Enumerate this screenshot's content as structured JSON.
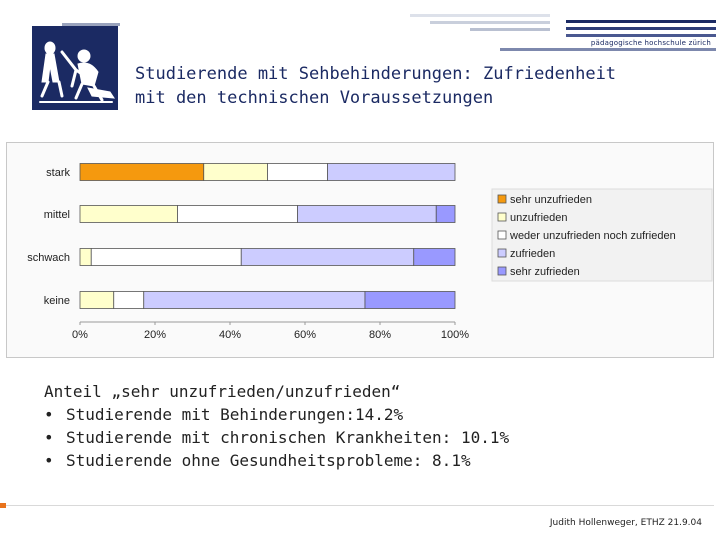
{
  "header": {
    "institution": "pädagogische hochschule zürich",
    "title_line1": "Studierende mit Sehbehinderungen: Zufriedenheit",
    "title_line2": "mit den technischen Voraussetzungen"
  },
  "chart_data": {
    "type": "bar",
    "orientation": "horizontal",
    "stacked": "percent",
    "categories": [
      "stark",
      "mittel",
      "schwach",
      "keine"
    ],
    "series": [
      {
        "name": "sehr unzufrieden",
        "color": "#f5990e",
        "values": [
          33,
          0,
          0,
          0
        ]
      },
      {
        "name": "unzufrieden",
        "color": "#ffffcc",
        "values": [
          17,
          26,
          3,
          9
        ]
      },
      {
        "name": "weder unzufrieden noch zufrieden",
        "color": "#ffffff",
        "values": [
          16,
          32,
          40,
          8
        ]
      },
      {
        "name": "zufrieden",
        "color": "#ccccff",
        "values": [
          34,
          37,
          46,
          59
        ]
      },
      {
        "name": "sehr zufrieden",
        "color": "#9999ff",
        "values": [
          0,
          5,
          11,
          24
        ]
      }
    ],
    "x_ticks": [
      "0%",
      "20%",
      "40%",
      "60%",
      "80%",
      "100%"
    ],
    "xlim": [
      0,
      100
    ],
    "legend": "right"
  },
  "notes": {
    "heading": "Anteil „sehr unzufrieden/unzufrieden“",
    "bullet": "•",
    "items": [
      "Studierende mit Behinderungen:14.2%",
      "Studierende mit chronischen Krankheiten: 10.1%",
      "Studierende ohne Gesundheitsprobleme: 8.1%"
    ]
  },
  "footer": {
    "text": "Judith Hollenweger, ETHZ  21.9.04"
  }
}
